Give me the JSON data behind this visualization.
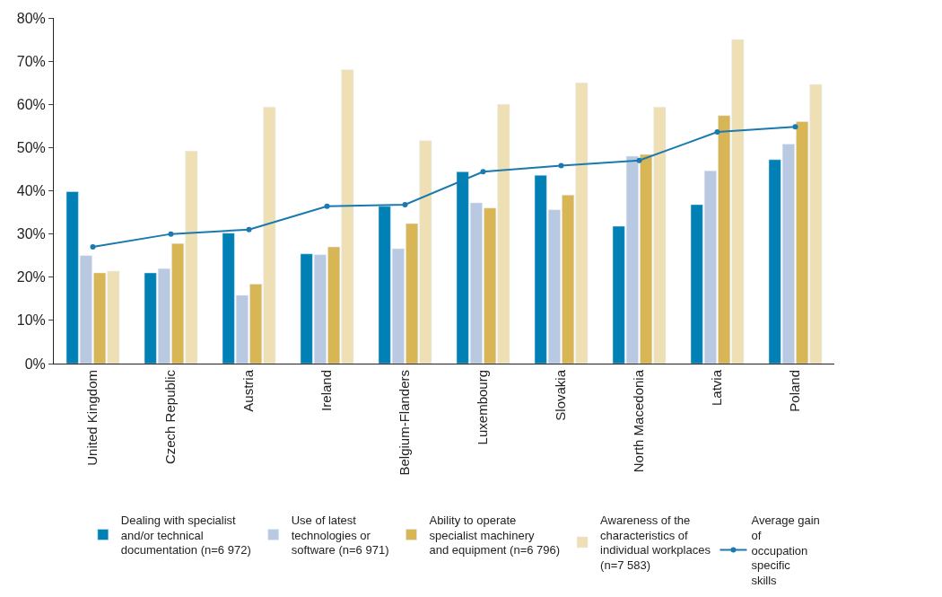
{
  "chart_data": {
    "type": "bar",
    "categories": [
      "United Kingdom",
      "Czech Republic",
      "Austria",
      "Ireland",
      "Belgium-Flanders",
      "Luxembourg",
      "Slovakia",
      "North Macedonia",
      "Latvia",
      "Poland"
    ],
    "series": [
      {
        "name": "Dealing with specialist and/or technical documentation (n=6 972)",
        "color": "#0080b4",
        "values": [
          39.8,
          21,
          30.2,
          25.4,
          36.4,
          44.4,
          43.6,
          31.8,
          36.8,
          47.2
        ]
      },
      {
        "name": "Use of latest technologies or software (n=6 971)",
        "color": "#b8c9e1",
        "values": [
          25,
          22,
          15.8,
          25.2,
          26.6,
          37.2,
          35.6,
          48,
          44.6,
          50.8
        ]
      },
      {
        "name": "Ability to operate specialist machinery and equipment (n=6 796)",
        "color": "#d8b655",
        "values": [
          21,
          27.8,
          18.4,
          27,
          32.4,
          36,
          39,
          48.4,
          57.4,
          56
        ]
      },
      {
        "name": "Awareness of the characteristics of individual workplaces (n=7 583)",
        "color": "#efdfb5",
        "values": [
          21.4,
          49.2,
          59.4,
          68,
          51.6,
          60,
          65,
          59.4,
          75,
          64.6
        ]
      },
      {
        "name": "Average gain of occupation specific skills",
        "type": "line",
        "color": "#1a7ab0",
        "marker": "circle",
        "values": [
          27,
          30,
          31,
          36.4,
          36.8,
          44.4,
          45.8,
          47,
          53.6,
          54.8
        ]
      }
    ],
    "ylim": [
      0,
      80
    ],
    "yticks": [
      {
        "value": 0,
        "label": "0%"
      },
      {
        "value": 10,
        "label": "10%"
      },
      {
        "value": 20,
        "label": "20%"
      },
      {
        "value": 30,
        "label": "30%"
      },
      {
        "value": 40,
        "label": "40%"
      },
      {
        "value": 50,
        "label": "50%"
      },
      {
        "value": 60,
        "label": "60%"
      },
      {
        "value": 70,
        "label": "70%"
      },
      {
        "value": 80,
        "label": "80%"
      }
    ],
    "legend": "bottom"
  }
}
